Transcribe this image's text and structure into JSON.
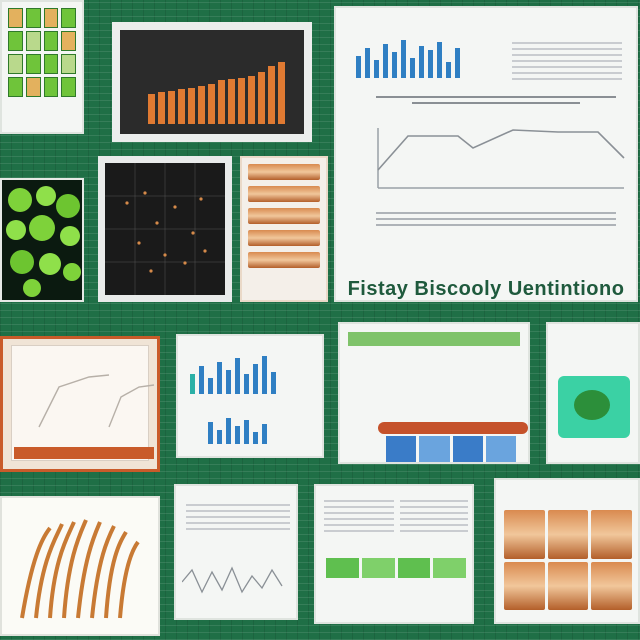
{
  "collage": {
    "main_panel": {
      "caption": "Fistay Biscooly Uentintiono"
    }
  },
  "colors": {
    "background": "#1f6f46",
    "accent_orange": "#e07a32",
    "accent_green": "#6fc43a",
    "accent_blue": "#2f7fc3",
    "paper": "#f4f6f4"
  }
}
